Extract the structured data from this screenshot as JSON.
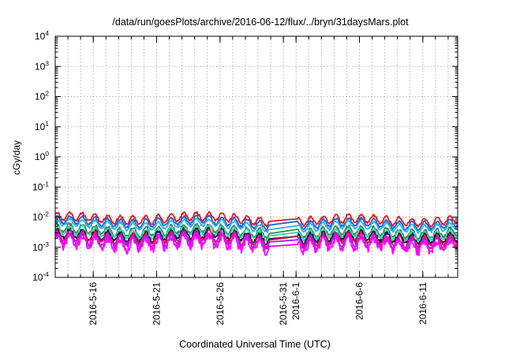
{
  "chart_data": {
    "type": "line",
    "title": "/data/run/goesPlots/archive/2016-06-12/flux/../bryn/31daysMars.plot",
    "xlabel": "Coordinated Universal Time (UTC)",
    "ylabel": "cGy/day",
    "yscale": "log",
    "ylim": [
      0.0001,
      10000
    ],
    "xlim": [
      "2016-05-13T00:00",
      "2016-06-13T18:00"
    ],
    "grid": true,
    "x_ticks": [
      {
        "date": "2016-05-16",
        "label": "2016-5-16"
      },
      {
        "date": "2016-05-21",
        "label": "2016-5-21"
      },
      {
        "date": "2016-05-26",
        "label": "2016-5-26"
      },
      {
        "date": "2016-05-31",
        "label": "2016-5-31"
      },
      {
        "date": "2016-06-01",
        "label": "2016-6-1"
      },
      {
        "date": "2016-06-06",
        "label": "2016-6-6"
      },
      {
        "date": "2016-06-11",
        "label": "2016-6-11"
      }
    ],
    "y_ticks": [
      {
        "value": 0.0001,
        "base": "10",
        "exp": "-4"
      },
      {
        "value": 0.001,
        "base": "10",
        "exp": "-3"
      },
      {
        "value": 0.01,
        "base": "10",
        "exp": "-2"
      },
      {
        "value": 0.1,
        "base": "10",
        "exp": "-1"
      },
      {
        "value": 1,
        "base": "10",
        "exp": "0"
      },
      {
        "value": 10,
        "base": "10",
        "exp": "1"
      },
      {
        "value": 100,
        "base": "10",
        "exp": "2"
      },
      {
        "value": 1000,
        "base": "10",
        "exp": "3"
      },
      {
        "value": 10000,
        "base": "10",
        "exp": "4"
      }
    ],
    "gap": [
      "2016-05-29T22:00",
      "2016-06-01T02:00"
    ],
    "series": [
      {
        "color": "#e31a1c",
        "base": 0.0085,
        "amp": 0.13,
        "noise": 0.04,
        "seed": 11
      },
      {
        "color": "#1f5fd6",
        "base": 0.0065,
        "amp": 0.13,
        "noise": 0.04,
        "seed": 23
      },
      {
        "color": "#2bb5e8",
        "base": 0.0052,
        "amp": 0.12,
        "noise": 0.04,
        "seed": 31
      },
      {
        "color": "#2e8b57",
        "base": 0.0034,
        "amp": 0.14,
        "noise": 0.05,
        "seed": 41
      },
      {
        "color": "#3ed1b0",
        "base": 0.0029,
        "amp": 0.14,
        "noise": 0.05,
        "seed": 47
      },
      {
        "color": "#0a1050",
        "base": 0.0023,
        "amp": 0.15,
        "noise": 0.06,
        "seed": 53
      },
      {
        "color": "#d91b3b",
        "base": 0.0019,
        "amp": 0.16,
        "noise": 0.07,
        "seed": 61
      },
      {
        "color": "#a020f0",
        "base": 0.0016,
        "amp": 0.17,
        "noise": 0.09,
        "seed": 67
      },
      {
        "color": "#ff00ff",
        "base": 0.0013,
        "amp": 0.18,
        "noise": 0.14,
        "seed": 71
      }
    ]
  }
}
